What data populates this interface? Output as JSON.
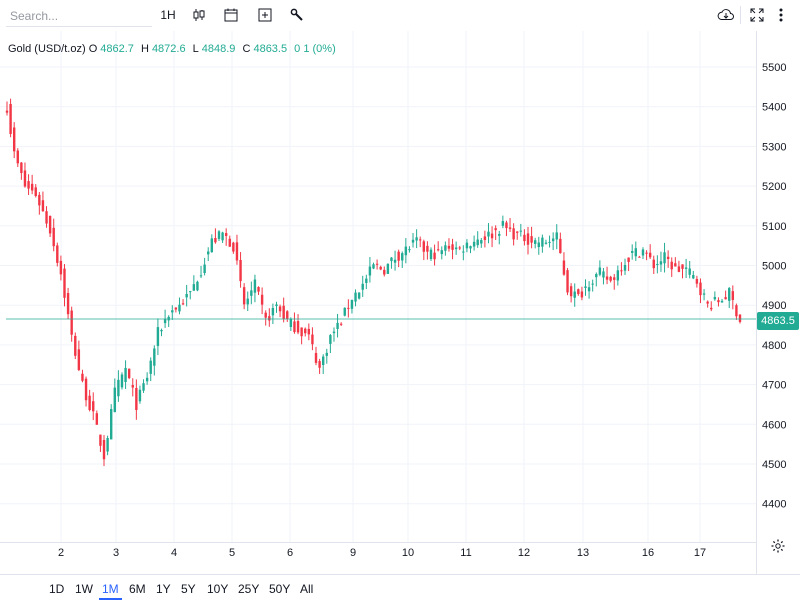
{
  "toolbar": {
    "search_placeholder": "Search...",
    "interval": "1H"
  },
  "legend": {
    "symbol": "Gold (USD/t.oz)",
    "open_key": "O",
    "open": "4862.7",
    "high_key": "H",
    "high": "4872.6",
    "low_key": "L",
    "low": "4848.9",
    "close_key": "C",
    "close": "4863.5",
    "change": "0 1 (0%)"
  },
  "last_price": "4863.5",
  "colors": {
    "up": "#22ab94",
    "down": "#f23645",
    "accent": "#2962ff"
  },
  "ranges": [
    "1D",
    "1W",
    "1M",
    "6M",
    "1Y",
    "5Y",
    "10Y",
    "25Y",
    "50Y",
    "All"
  ],
  "active_range": "1M",
  "chart_data": {
    "type": "candlestick",
    "y_ticks": [
      "5500",
      "5400",
      "5300",
      "5200",
      "5100",
      "5000",
      "4900",
      "4800",
      "4700",
      "4600",
      "4500",
      "4400"
    ],
    "x_ticks": [
      "2",
      "3",
      "4",
      "5",
      "6",
      "9",
      "10",
      "11",
      "12",
      "13",
      "16",
      "17"
    ],
    "ylim": [
      4360,
      5550
    ],
    "grid": true,
    "keypoints": [
      [
        0,
        5400
      ],
      [
        2,
        5280
      ],
      [
        5,
        5200
      ],
      [
        8,
        5180
      ],
      [
        12,
        5090
      ],
      [
        15,
        4980
      ],
      [
        18,
        4820
      ],
      [
        21,
        4700
      ],
      [
        24,
        4620
      ],
      [
        27,
        4520
      ],
      [
        30,
        4680
      ],
      [
        33,
        4740
      ],
      [
        36,
        4650
      ],
      [
        39,
        4720
      ],
      [
        42,
        4830
      ],
      [
        45,
        4880
      ],
      [
        48,
        4900
      ],
      [
        51,
        4930
      ],
      [
        54,
        4990
      ],
      [
        57,
        5060
      ],
      [
        60,
        5080
      ],
      [
        63,
        5050
      ],
      [
        66,
        4900
      ],
      [
        69,
        4950
      ],
      [
        72,
        4860
      ],
      [
        75,
        4900
      ],
      [
        78,
        4860
      ],
      [
        81,
        4840
      ],
      [
        84,
        4820
      ],
      [
        87,
        4740
      ],
      [
        90,
        4820
      ],
      [
        93,
        4860
      ],
      [
        96,
        4920
      ],
      [
        99,
        4950
      ],
      [
        102,
        5000
      ],
      [
        105,
        4990
      ],
      [
        108,
        5020
      ],
      [
        111,
        5040
      ],
      [
        114,
        5060
      ],
      [
        117,
        5030
      ],
      [
        120,
        5030
      ],
      [
        123,
        5050
      ],
      [
        126,
        5040
      ],
      [
        129,
        5060
      ],
      [
        132,
        5070
      ],
      [
        135,
        5080
      ],
      [
        138,
        5100
      ],
      [
        141,
        5080
      ],
      [
        144,
        5070
      ],
      [
        147,
        5060
      ],
      [
        150,
        5060
      ],
      [
        153,
        5070
      ],
      [
        156,
        4940
      ],
      [
        159,
        4920
      ],
      [
        162,
        4960
      ],
      [
        165,
        4980
      ],
      [
        168,
        4960
      ],
      [
        171,
        5000
      ],
      [
        174,
        5030
      ],
      [
        177,
        5040
      ],
      [
        180,
        5000
      ],
      [
        183,
        5020
      ],
      [
        186,
        4990
      ],
      [
        189,
        4990
      ],
      [
        192,
        4960
      ],
      [
        195,
        4900
      ],
      [
        198,
        4910
      ],
      [
        201,
        4930
      ],
      [
        204,
        4863
      ]
    ]
  }
}
